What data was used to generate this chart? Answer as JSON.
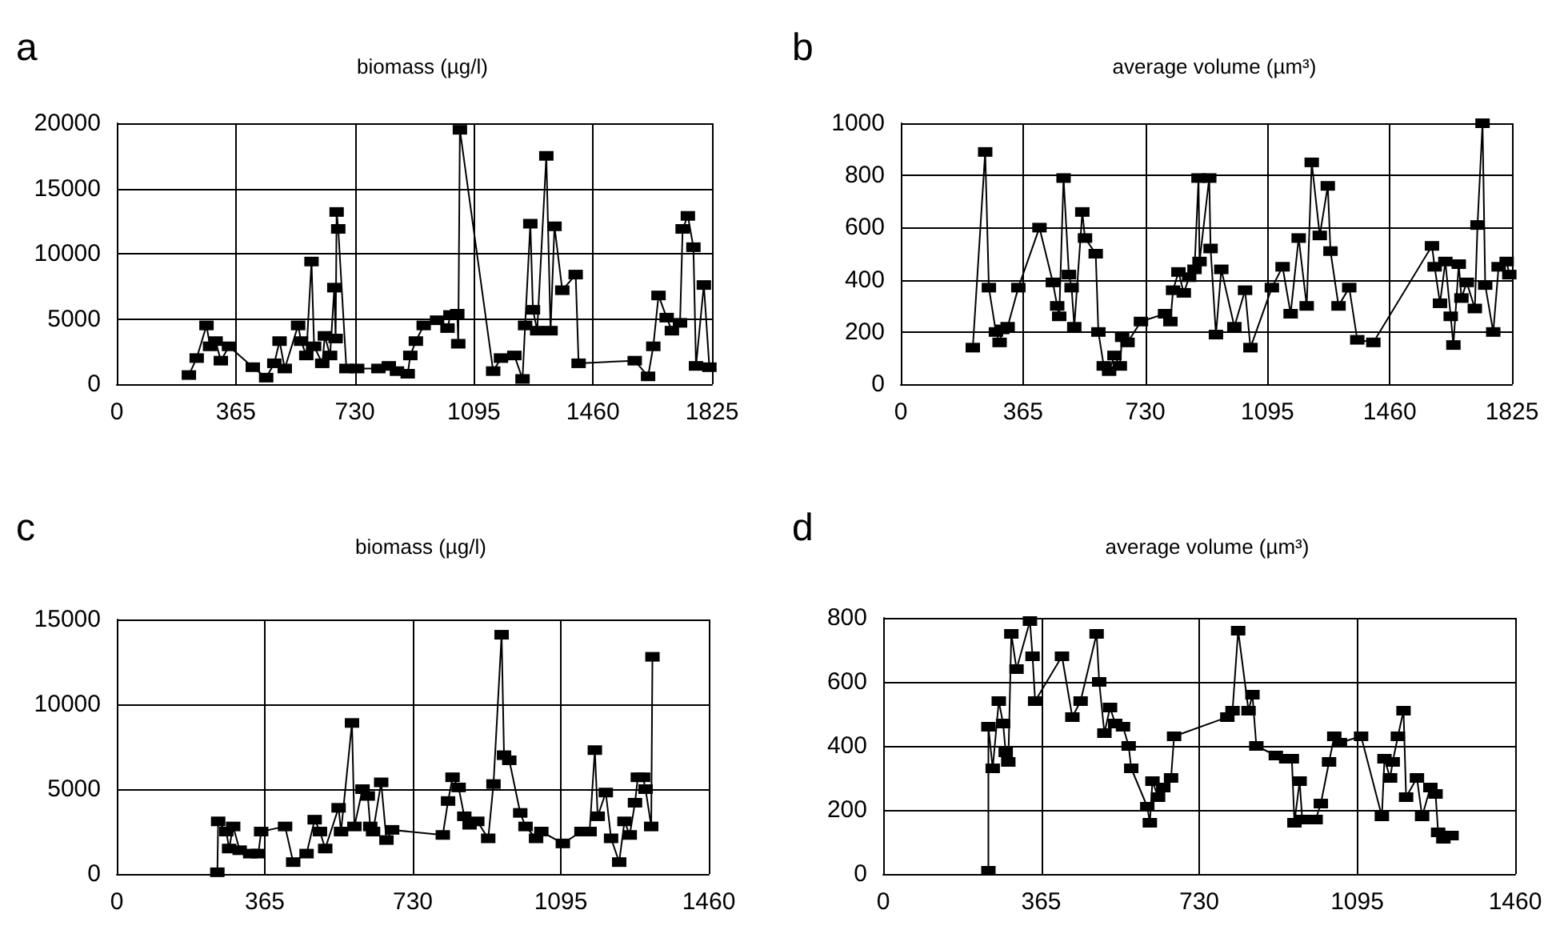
{
  "chart_data": [
    {
      "type": "line",
      "title": "biomass (µg/l)",
      "annotations": [
        "a"
      ],
      "grid": true,
      "marker": "square",
      "line_style": "solid",
      "xlim": [
        0,
        1825
      ],
      "xticks": [
        0,
        365,
        730,
        1095,
        1460,
        1825
      ],
      "ylim": [
        0,
        20000
      ],
      "yticks": [
        0,
        5000,
        10000,
        15000,
        20000
      ],
      "series": [
        {
          "color": "#000000",
          "x": [
            221,
            245,
            275,
            286,
            303,
            319,
            344,
            417,
            458,
            483,
            499,
            515,
            556,
            565,
            581,
            597,
            605,
            630,
            638,
            654,
            667,
            671,
            674,
            679,
            704,
            737,
            802,
            834,
            859,
            892,
            900,
            917,
            941,
            982,
            1014,
            1023,
            1044,
            1047,
            1052,
            1154,
            1178,
            1219,
            1244,
            1252,
            1268,
            1276,
            1289,
            1317,
            1330,
            1342,
            1366,
            1407,
            1416,
            1588,
            1629,
            1645,
            1661,
            1686,
            1702,
            1727,
            1735,
            1751,
            1768,
            1776,
            1800,
            1817
          ],
          "values": [
            700,
            2000,
            4500,
            2900,
            3300,
            1800,
            2900,
            1300,
            500,
            1600,
            3300,
            1200,
            4500,
            3300,
            2200,
            9400,
            2900,
            1600,
            3700,
            2200,
            7400,
            3500,
            13200,
            11900,
            1200,
            1200,
            1200,
            1400,
            1000,
            800,
            2200,
            3300,
            4500,
            4900,
            4300,
            5300,
            5400,
            3100,
            19500,
            1000,
            2000,
            2200,
            400,
            4500,
            12300,
            5700,
            4100,
            17500,
            4100,
            12100,
            7200,
            8400,
            1600,
            1800,
            600,
            2900,
            6800,
            5100,
            4100,
            4700,
            11900,
            12900,
            10500,
            1400,
            7600,
            1300
          ]
        }
      ]
    },
    {
      "type": "line",
      "title": "average volume (µm³)",
      "annotations": [
        "b"
      ],
      "grid": true,
      "marker": "square",
      "line_style": "solid",
      "xlim": [
        0,
        1825
      ],
      "xticks": [
        0,
        365,
        730,
        1095,
        1460,
        1825
      ],
      "ylim": [
        0,
        1000
      ],
      "yticks": [
        0,
        200,
        400,
        600,
        800,
        1000
      ],
      "series": [
        {
          "color": "#000000",
          "x": [
            215,
            252,
            263,
            284,
            295,
            303,
            319,
            351,
            414,
            454,
            467,
            473,
            486,
            502,
            510,
            518,
            542,
            550,
            582,
            590,
            606,
            622,
            638,
            654,
            661,
            677,
            717,
            789,
            805,
            813,
            829,
            845,
            861,
            877,
            889,
            892,
            921,
            925,
            941,
            957,
            996,
            1028,
            1044,
            1108,
            1140,
            1164,
            1188,
            1212,
            1227,
            1251,
            1275,
            1283,
            1307,
            1339,
            1363,
            1411,
            1586,
            1594,
            1610,
            1626,
            1642,
            1650,
            1666,
            1674,
            1690,
            1714,
            1722,
            1737,
            1745,
            1769,
            1785,
            1809,
            1817
          ],
          "values": [
            140,
            890,
            370,
            200,
            160,
            210,
            220,
            370,
            600,
            390,
            300,
            260,
            790,
            420,
            370,
            220,
            660,
            560,
            500,
            200,
            70,
            50,
            110,
            70,
            180,
            160,
            240,
            270,
            240,
            360,
            430,
            350,
            410,
            440,
            790,
            470,
            790,
            520,
            190,
            440,
            220,
            360,
            140,
            370,
            450,
            270,
            560,
            300,
            850,
            570,
            760,
            510,
            300,
            370,
            170,
            160,
            530,
            450,
            310,
            470,
            260,
            150,
            460,
            330,
            390,
            290,
            610,
            1000,
            380,
            200,
            450,
            470,
            420
          ]
        }
      ]
    },
    {
      "type": "line",
      "title": "biomass (µg/l)",
      "annotations": [
        "c"
      ],
      "grid": true,
      "marker": "square",
      "line_style": "solid",
      "xlim": [
        0,
        1460
      ],
      "xticks": [
        0,
        365,
        730,
        1095,
        1460
      ],
      "ylim": [
        0,
        15000
      ],
      "yticks": [
        0,
        5000,
        10000,
        15000
      ],
      "series": [
        {
          "color": "#000000",
          "x": [
            248,
            250,
            270,
            277,
            287,
            303,
            329,
            349,
            356,
            415,
            435,
            468,
            488,
            501,
            514,
            547,
            553,
            580,
            586,
            606,
            619,
            625,
            632,
            652,
            665,
            679,
            804,
            817,
            828,
            843,
            857,
            870,
            889,
            916,
            929,
            949,
            955,
            968,
            995,
            1008,
            1034,
            1047,
            1100,
            1146,
            1166,
            1179,
            1186,
            1206,
            1219,
            1239,
            1252,
            1265,
            1278,
            1285,
            1298,
            1304,
            1318,
            1321
          ],
          "values": [
            100,
            3100,
            2500,
            1500,
            2800,
            1400,
            1200,
            1200,
            2500,
            2800,
            700,
            1200,
            3200,
            2500,
            1500,
            3900,
            2500,
            8900,
            2800,
            5000,
            4600,
            2800,
            2500,
            5400,
            2000,
            2600,
            2300,
            4300,
            5700,
            5100,
            3400,
            2900,
            3100,
            2100,
            5300,
            14100,
            7000,
            6700,
            3600,
            2800,
            2100,
            2500,
            1800,
            2500,
            2500,
            7300,
            3400,
            4800,
            2100,
            700,
            3100,
            2300,
            4200,
            5700,
            5700,
            5000,
            2800,
            12800
          ]
        }
      ]
    },
    {
      "type": "line",
      "title": "average volume (µm³)",
      "annotations": [
        "d"
      ],
      "grid": true,
      "marker": "square",
      "line_style": "solid",
      "xlim": [
        0,
        1460
      ],
      "xticks": [
        0,
        365,
        730,
        1095,
        1460
      ],
      "ylim": [
        0,
        800
      ],
      "yticks": [
        0,
        200,
        400,
        600,
        800
      ],
      "series": [
        {
          "color": "#000000",
          "x": [
            243,
            243,
            253,
            267,
            277,
            283,
            289,
            296,
            308,
            339,
            345,
            351,
            413,
            437,
            456,
            493,
            499,
            511,
            524,
            536,
            554,
            567,
            573,
            610,
            616,
            622,
            635,
            647,
            665,
            672,
            795,
            807,
            820,
            844,
            853,
            862,
            907,
            931,
            944,
            950,
            962,
            968,
            999,
            1011,
            1030,
            1042,
            1055,
            1104,
            1152,
            1158,
            1171,
            1177,
            1189,
            1202,
            1208,
            1233,
            1245,
            1264,
            1276,
            1282,
            1294,
            1313
          ],
          "values": [
            10,
            460,
            330,
            540,
            470,
            380,
            350,
            750,
            640,
            790,
            680,
            540,
            680,
            490,
            540,
            750,
            600,
            440,
            520,
            470,
            460,
            400,
            330,
            210,
            160,
            290,
            240,
            270,
            300,
            430,
            490,
            510,
            760,
            510,
            560,
            400,
            370,
            360,
            360,
            160,
            290,
            170,
            170,
            220,
            350,
            430,
            410,
            430,
            180,
            360,
            300,
            350,
            430,
            510,
            240,
            300,
            180,
            270,
            250,
            130,
            110,
            120
          ]
        }
      ]
    }
  ]
}
